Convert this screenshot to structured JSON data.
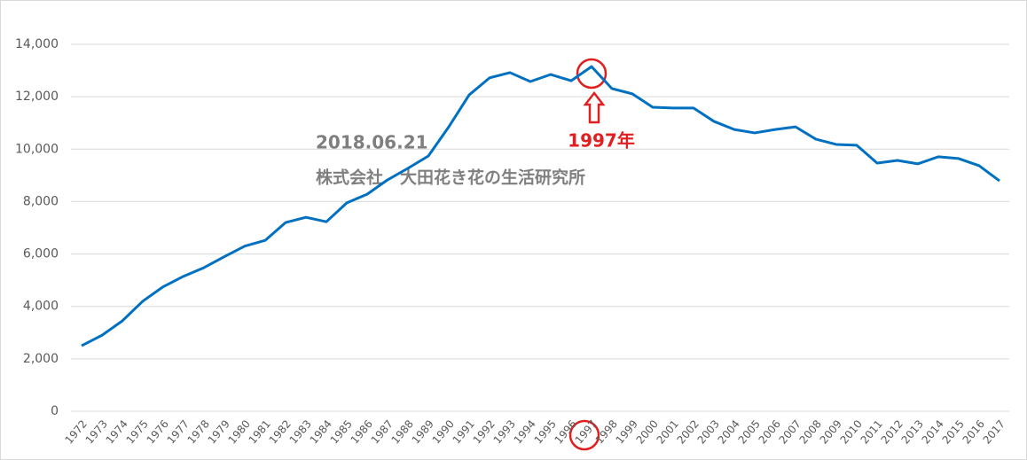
{
  "chart_data": {
    "type": "line",
    "categories": [
      "1972",
      "1973",
      "1974",
      "1975",
      "1976",
      "1977",
      "1978",
      "1979",
      "1980",
      "1981",
      "1982",
      "1983",
      "1984",
      "1985",
      "1986",
      "1987",
      "1988",
      "1989",
      "1990",
      "1991",
      "1992",
      "1993",
      "1994",
      "1995",
      "1996",
      "1997",
      "1998",
      "1999",
      "2000",
      "2001",
      "2002",
      "2003",
      "2004",
      "2005",
      "2006",
      "2007",
      "2008",
      "2009",
      "2010",
      "2011",
      "2012",
      "2013",
      "2014",
      "2015",
      "2016",
      "2017"
    ],
    "series": [
      {
        "color": "#0070c0",
        "values": [
          2500,
          2900,
          3450,
          4200,
          4750,
          5150,
          5480,
          5900,
          6300,
          6520,
          7200,
          7400,
          7230,
          7950,
          8280,
          8830,
          9270,
          9740,
          10850,
          12070,
          12720,
          12920,
          12580,
          12850,
          12610,
          13150,
          12310,
          12110,
          11600,
          11570,
          11570,
          11060,
          10750,
          10620,
          10750,
          10850,
          10380,
          10180,
          10150,
          9470,
          9570,
          9440,
          9710,
          9640,
          9370,
          8790
        ]
      }
    ],
    "ylim": [
      0,
      14000
    ],
    "yticks": [
      0,
      {
        "value": 2000,
        "label": "2,000"
      },
      {
        "value": 4000,
        "label": "4,000"
      },
      {
        "value": 6000,
        "label": "6,000"
      },
      {
        "value": 8000,
        "label": "8,000"
      },
      {
        "value": 10000,
        "label": "10,000"
      },
      {
        "value": 12000,
        "label": "12,000"
      },
      {
        "value": 14000,
        "label": "14,000"
      }
    ],
    "grid": true,
    "annotations": [
      "2018.06.21",
      "株式会社　大田花き花の生活研究所",
      "1997年"
    ]
  }
}
